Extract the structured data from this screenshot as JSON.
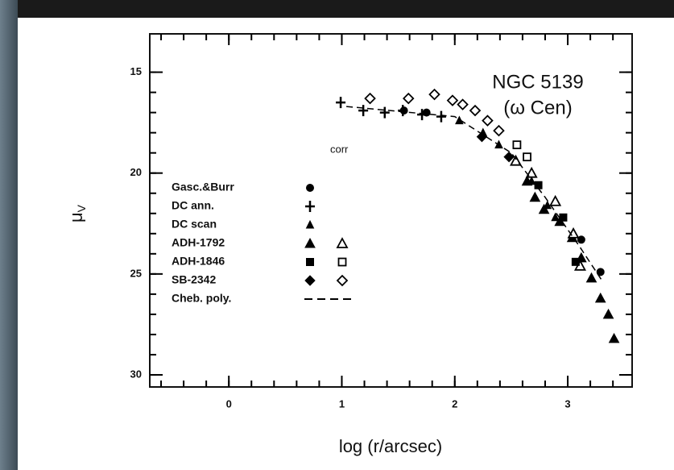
{
  "chart_data": {
    "type": "scatter",
    "x_label": "log (r/arcsec)",
    "y_label": "μ",
    "y_label_sub": "V",
    "annotations": [
      "NGC 5139",
      "(ω Cen)",
      "corr"
    ],
    "xlim": [
      -0.7,
      3.57
    ],
    "xticks": [
      0,
      1,
      2,
      3
    ],
    "ylim": [
      13.1,
      30.6
    ],
    "yticks": [
      15,
      20,
      25,
      30
    ],
    "y_inverted": true,
    "color": "#000000",
    "series": [
      {
        "name": "Gasc.&Burr",
        "marker": "circle",
        "x": [
          1.55,
          1.75,
          3.12,
          3.29
        ],
        "values": [
          16.9,
          17.0,
          23.3,
          24.9
        ]
      },
      {
        "name": "DC ann.",
        "marker": "plus",
        "x": [
          0.99,
          1.19,
          1.38,
          1.54,
          1.71,
          1.88
        ],
        "values": [
          16.5,
          16.9,
          17.0,
          16.9,
          17.1,
          17.2
        ]
      },
      {
        "name": "DC scan",
        "marker": "small-triangle",
        "x": [
          2.04,
          2.25,
          2.39,
          2.54,
          2.68,
          2.82,
          2.89
        ],
        "values": [
          17.4,
          18.0,
          18.6,
          19.4,
          20.4,
          21.6,
          22.2
        ]
      },
      {
        "name": "ADH-1792",
        "marker": "triangle",
        "x": [
          2.64,
          2.71,
          2.79,
          2.93,
          3.04,
          3.12,
          3.21,
          3.29,
          3.36,
          3.41
        ],
        "values": [
          20.4,
          21.2,
          21.8,
          22.4,
          23.2,
          24.2,
          25.2,
          26.2,
          27.0,
          28.2
        ],
        "x_open": [
          2.54,
          2.68,
          2.89,
          3.05,
          3.11
        ],
        "values_open": [
          19.4,
          20.0,
          21.4,
          23.0,
          24.6
        ]
      },
      {
        "name": "ADH-1846",
        "marker": "square",
        "x": [
          2.74,
          2.96,
          3.07
        ],
        "values": [
          20.6,
          22.2,
          24.4
        ],
        "x_open": [
          2.55,
          2.64
        ],
        "values_open": [
          18.6,
          19.2
        ]
      },
      {
        "name": "SB-2342",
        "marker": "diamond",
        "x": [
          2.24,
          2.48
        ],
        "values": [
          18.2,
          19.2
        ],
        "x_open": [
          1.25,
          1.59,
          1.82,
          1.98,
          2.07,
          2.18,
          2.29,
          2.39
        ],
        "values_open": [
          16.3,
          16.3,
          16.1,
          16.4,
          16.6,
          16.9,
          17.4,
          17.9
        ]
      },
      {
        "name": "Cheb. poly.",
        "marker": "dash",
        "x": [
          1.04,
          2.0,
          2.5,
          2.8,
          3.1,
          3.3
        ],
        "values": [
          16.7,
          17.2,
          19.0,
          21.2,
          23.6,
          25.3
        ]
      }
    ]
  }
}
